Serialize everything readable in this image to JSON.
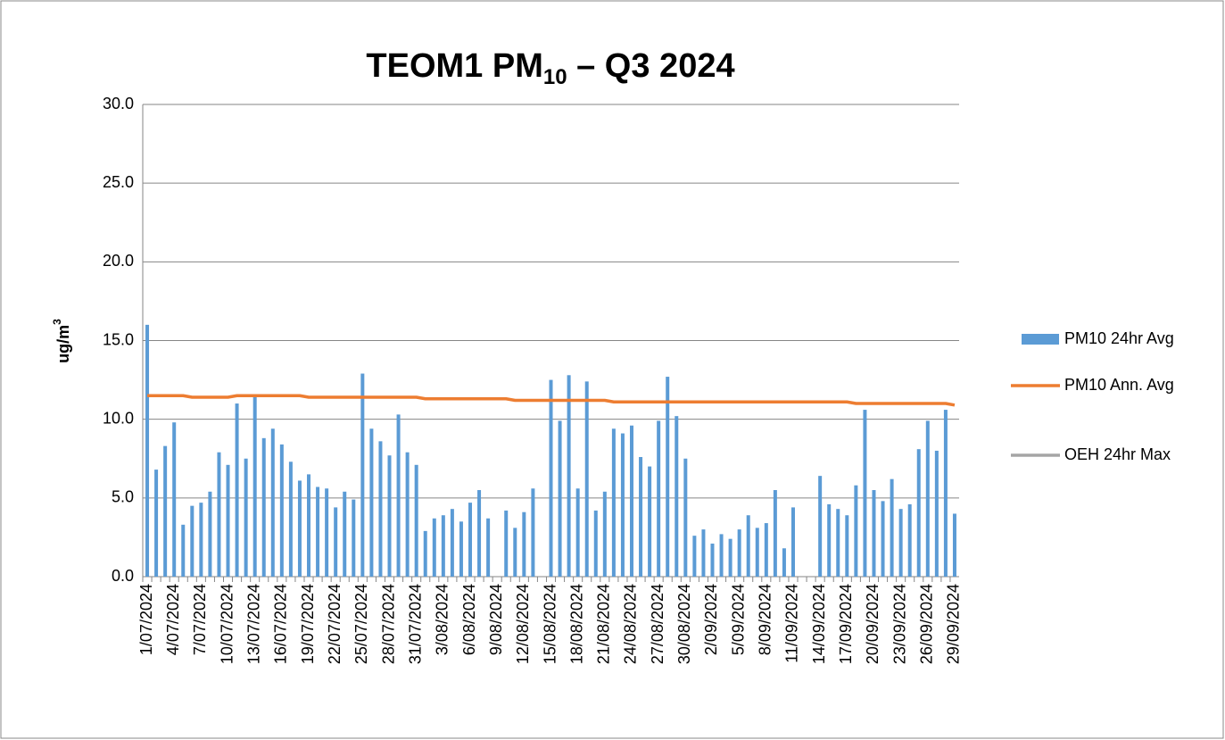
{
  "chart_data": {
    "type": "bar",
    "title": {
      "text": "TEOM1 PM",
      "subscript": "10",
      "suffix": " – Q3 2024"
    },
    "y_label": {
      "text": "ug/m",
      "superscript": "3"
    },
    "categories": [
      "1/07/2024",
      null,
      null,
      "4/07/2024",
      null,
      null,
      "7/07/2024",
      null,
      null,
      "10/07/2024",
      null,
      null,
      "13/07/2024",
      null,
      null,
      "16/07/2024",
      null,
      null,
      "19/07/2024",
      null,
      null,
      "22/07/2024",
      null,
      null,
      "25/07/2024",
      null,
      null,
      "28/07/2024",
      null,
      null,
      "31/07/2024",
      null,
      null,
      "3/08/2024",
      null,
      null,
      "6/08/2024",
      null,
      null,
      "9/08/2024",
      null,
      null,
      "12/08/2024",
      null,
      null,
      "15/08/2024",
      null,
      null,
      "18/08/2024",
      null,
      null,
      "21/08/2024",
      null,
      null,
      "24/08/2024",
      null,
      null,
      "27/08/2024",
      null,
      null,
      "30/08/2024",
      null,
      null,
      "2/09/2024",
      null,
      null,
      "5/09/2024",
      null,
      null,
      "8/09/2024",
      null,
      null,
      "11/09/2024",
      null,
      null,
      "14/09/2024",
      null,
      null,
      "17/09/2024",
      null,
      null,
      "20/09/2024",
      null,
      null,
      "23/09/2024",
      null,
      null,
      "26/09/2024",
      null,
      null,
      "29/09/2024"
    ],
    "series": [
      {
        "name": "PM10 24hr Avg",
        "type": "bar",
        "color": "#5b9bd5",
        "values": [
          16.0,
          6.8,
          8.3,
          9.8,
          3.3,
          4.5,
          4.7,
          5.4,
          7.9,
          7.1,
          11.0,
          7.5,
          11.4,
          8.8,
          9.4,
          8.4,
          7.3,
          6.1,
          6.5,
          5.7,
          5.6,
          4.4,
          5.4,
          4.9,
          12.9,
          9.4,
          8.6,
          7.7,
          10.3,
          7.9,
          7.1,
          2.9,
          3.7,
          3.9,
          4.3,
          3.5,
          4.7,
          5.5,
          3.7,
          null,
          4.2,
          3.1,
          4.1,
          5.6,
          null,
          12.5,
          9.9,
          12.8,
          5.6,
          12.4,
          4.2,
          5.4,
          9.4,
          9.1,
          9.6,
          7.6,
          7.0,
          9.9,
          12.7,
          10.2,
          7.5,
          2.6,
          3.0,
          2.1,
          2.7,
          2.4,
          3.0,
          3.9,
          3.1,
          3.4,
          5.5,
          1.8,
          4.4,
          null,
          null,
          6.4,
          4.6,
          4.3,
          3.9,
          5.8,
          10.6,
          5.5,
          4.8,
          6.2,
          4.3,
          4.6,
          8.1,
          9.9,
          8.0,
          10.6,
          4.0
        ]
      },
      {
        "name": "PM10 Ann. Avg",
        "type": "line",
        "color": "#ed7d31",
        "values": [
          11.5,
          11.5,
          11.5,
          11.5,
          11.5,
          11.4,
          11.4,
          11.4,
          11.4,
          11.4,
          11.5,
          11.5,
          11.5,
          11.5,
          11.5,
          11.5,
          11.5,
          11.5,
          11.4,
          11.4,
          11.4,
          11.4,
          11.4,
          11.4,
          11.4,
          11.4,
          11.4,
          11.4,
          11.4,
          11.4,
          11.4,
          11.3,
          11.3,
          11.3,
          11.3,
          11.3,
          11.3,
          11.3,
          11.3,
          11.3,
          11.3,
          11.2,
          11.2,
          11.2,
          11.2,
          11.2,
          11.2,
          11.2,
          11.2,
          11.2,
          11.2,
          11.2,
          11.1,
          11.1,
          11.1,
          11.1,
          11.1,
          11.1,
          11.1,
          11.1,
          11.1,
          11.1,
          11.1,
          11.1,
          11.1,
          11.1,
          11.1,
          11.1,
          11.1,
          11.1,
          11.1,
          11.1,
          11.1,
          11.1,
          11.1,
          11.1,
          11.1,
          11.1,
          11.1,
          11.0,
          11.0,
          11.0,
          11.0,
          11.0,
          11.0,
          11.0,
          11.0,
          11.0,
          11.0,
          11.0,
          10.9
        ]
      },
      {
        "name": "OEH 24hr Max",
        "type": "line",
        "color": "#a5a5a5",
        "values": [
          null,
          null,
          null,
          null,
          null,
          null,
          null,
          null,
          null,
          null,
          null,
          null,
          null,
          null,
          null,
          null,
          null,
          null,
          null,
          null,
          null,
          null,
          null,
          null,
          null,
          null,
          null,
          null,
          null,
          null,
          null,
          null,
          null,
          null,
          null,
          null,
          null,
          null,
          null,
          null,
          null,
          null,
          null,
          null,
          null,
          null,
          null,
          null,
          null,
          null,
          null,
          null,
          null,
          null,
          null,
          null,
          null,
          null,
          null,
          null,
          null,
          null,
          null,
          null,
          null,
          null,
          null,
          null,
          null,
          null,
          null,
          null,
          null,
          null,
          null,
          null,
          null,
          null,
          null,
          null,
          null,
          null,
          null,
          null,
          null,
          null,
          null,
          null,
          null,
          null,
          null
        ]
      }
    ],
    "ylim": [
      0,
      30
    ],
    "yticks": [
      {
        "value": 0,
        "label": "0.0"
      },
      {
        "value": 5,
        "label": "5.0"
      },
      {
        "value": 10,
        "label": "10.0"
      },
      {
        "value": 15,
        "label": "15.0"
      },
      {
        "value": 20,
        "label": "20.0"
      },
      {
        "value": 25,
        "label": "25.0"
      },
      {
        "value": 30,
        "label": "30.0"
      }
    ],
    "grid": true,
    "legend": "right"
  }
}
